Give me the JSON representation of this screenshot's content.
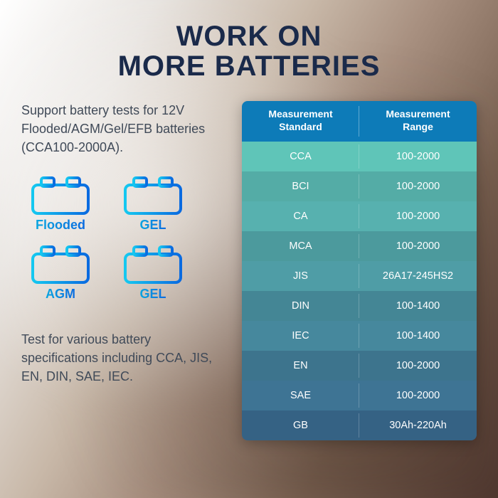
{
  "title_line1": "WORK ON",
  "title_line2": "MORE BATTERIES",
  "desc1": "Support battery tests for 12V Flooded/AGM/Gel/EFB batteries (CCA100-2000A).",
  "desc2": "Test for various battery specifications including CCA, JIS, EN, DIN, SAE, IEC.",
  "batteries": {
    "items": [
      "Flooded",
      "GEL",
      "AGM",
      "GEL"
    ],
    "icon_gradient_from": "#15c8f0",
    "icon_gradient_to": "#0a6ae0",
    "icon_stroke_width": 4
  },
  "table": {
    "header_bg": "#0d7bb8",
    "header_text": "#ffffff",
    "row_gradient_top": "#5fc5b8",
    "row_gradient_bottom": "#3a6a90",
    "cols": [
      "Measurement\nStandard",
      "Measurement\nRange"
    ],
    "rows": [
      [
        "CCA",
        "100-2000"
      ],
      [
        "BCI",
        "100-2000"
      ],
      [
        "CA",
        "100-2000"
      ],
      [
        "MCA",
        "100-2000"
      ],
      [
        "JIS",
        "26A17-245HS2"
      ],
      [
        "DIN",
        "100-1400"
      ],
      [
        "IEC",
        "100-1400"
      ],
      [
        "EN",
        "100-2000"
      ],
      [
        "SAE",
        "100-2000"
      ],
      [
        "GB",
        "30Ah-220Ah"
      ]
    ]
  },
  "colors": {
    "title": "#1a2a4a",
    "body_text": "#404a58"
  },
  "fontsize": {
    "title": 40,
    "body": 18,
    "th": 14,
    "td": 14.5
  }
}
